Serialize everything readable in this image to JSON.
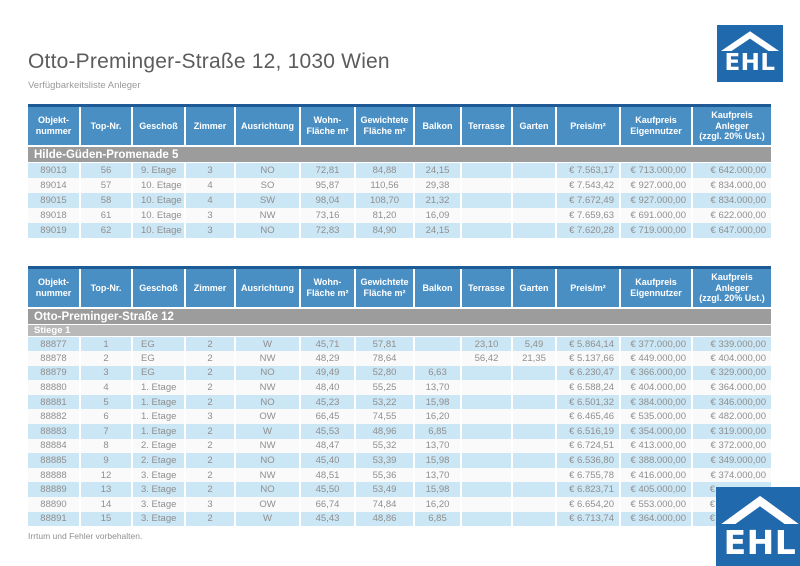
{
  "page": {
    "title": "Otto-Preminger-Straße 12, 1030 Wien",
    "subtitle": "Verfügbarkeitsliste Anleger",
    "footer": "Irrtum und Fehler vorbehalten."
  },
  "logo": {
    "text": "EHL"
  },
  "colors": {
    "header_blue": "#4a8fc4",
    "table_top_border": "#1d5a96",
    "logo_blue": "#2069ad",
    "section_gray": "#9c9c9c",
    "subsection_gray": "#b9b9b9",
    "row_stripe_blue": "#cbe6f4",
    "row_stripe_white": "#fafafa",
    "text_gray": "#8f8f8f"
  },
  "columns": [
    "Objekt-\nnummer",
    "Top-Nr.",
    "Geschoß",
    "Zimmer",
    "Ausrichtung",
    "Wohn-\nFläche m²",
    "Gewichtete\nFläche m²",
    "Balkon",
    "Terrasse",
    "Garten",
    "Preis/m²",
    "Kaufpreis\nEigennutzer",
    "Kaufpreis\nAnleger\n(zzgl. 20% Ust.)"
  ],
  "tables": [
    {
      "section": "Hilde-Güden-Promenade 5",
      "subsection": null,
      "rows": [
        [
          "89013",
          "56",
          "9. Etage",
          "3",
          "NO",
          "72,81",
          "84,88",
          "24,15",
          "",
          "",
          "€ 7.563,17",
          "€ 713.000,00",
          "€ 642.000,00"
        ],
        [
          "89014",
          "57",
          "10. Etage",
          "4",
          "SO",
          "95,87",
          "110,56",
          "29,38",
          "",
          "",
          "€ 7.543,42",
          "€ 927.000,00",
          "€ 834.000,00"
        ],
        [
          "89015",
          "58",
          "10. Etage",
          "4",
          "SW",
          "98,04",
          "108,70",
          "21,32",
          "",
          "",
          "€ 7.672,49",
          "€ 927.000,00",
          "€ 834.000,00"
        ],
        [
          "89018",
          "61",
          "10. Etage",
          "3",
          "NW",
          "73,16",
          "81,20",
          "16,09",
          "",
          "",
          "€ 7.659,63",
          "€ 691.000,00",
          "€ 622.000,00"
        ],
        [
          "89019",
          "62",
          "10. Etage",
          "3",
          "NO",
          "72,83",
          "84,90",
          "24,15",
          "",
          "",
          "€ 7.620,28",
          "€ 719.000,00",
          "€ 647.000,00"
        ]
      ]
    },
    {
      "section": "Otto-Preminger-Straße 12",
      "subsection": "Stiege 1",
      "rows": [
        [
          "88877",
          "1",
          "EG",
          "2",
          "W",
          "45,71",
          "57,81",
          "",
          "23,10",
          "5,49",
          "€ 5.864,14",
          "€ 377.000,00",
          "€ 339.000,00"
        ],
        [
          "88878",
          "2",
          "EG",
          "2",
          "NW",
          "48,29",
          "78,64",
          "",
          "56,42",
          "21,35",
          "€ 5.137,66",
          "€ 449.000,00",
          "€ 404.000,00"
        ],
        [
          "88879",
          "3",
          "EG",
          "2",
          "NO",
          "49,49",
          "52,80",
          "6,63",
          "",
          "",
          "€ 6.230,47",
          "€ 366.000,00",
          "€ 329.000,00"
        ],
        [
          "88880",
          "4",
          "1. Etage",
          "2",
          "NW",
          "48,40",
          "55,25",
          "13,70",
          "",
          "",
          "€ 6.588,24",
          "€ 404.000,00",
          "€ 364.000,00"
        ],
        [
          "88881",
          "5",
          "1. Etage",
          "2",
          "NO",
          "45,23",
          "53,22",
          "15,98",
          "",
          "",
          "€ 6.501,32",
          "€ 384.000,00",
          "€ 346.000,00"
        ],
        [
          "88882",
          "6",
          "1. Etage",
          "3",
          "OW",
          "66,45",
          "74,55",
          "16,20",
          "",
          "",
          "€ 6.465,46",
          "€ 535.000,00",
          "€ 482.000,00"
        ],
        [
          "88883",
          "7",
          "1. Etage",
          "2",
          "W",
          "45,53",
          "48,96",
          "6,85",
          "",
          "",
          "€ 6.516,19",
          "€ 354.000,00",
          "€ 319.000,00"
        ],
        [
          "88884",
          "8",
          "2. Etage",
          "2",
          "NW",
          "48,47",
          "55,32",
          "13,70",
          "",
          "",
          "€ 6.724,51",
          "€ 413.000,00",
          "€ 372.000,00"
        ],
        [
          "88885",
          "9",
          "2. Etage",
          "2",
          "NO",
          "45,40",
          "53,39",
          "15,98",
          "",
          "",
          "€ 6.536,80",
          "€ 388.000,00",
          "€ 349.000,00"
        ],
        [
          "88888",
          "12",
          "3. Etage",
          "2",
          "NW",
          "48,51",
          "55,36",
          "13,70",
          "",
          "",
          "€ 6.755,78",
          "€ 416.000,00",
          "€ 374.000,00"
        ],
        [
          "88889",
          "13",
          "3. Etage",
          "2",
          "NO",
          "45,50",
          "53,49",
          "15,98",
          "",
          "",
          "€ 6.823,71",
          "€ 405.000,00",
          "€"
        ],
        [
          "88890",
          "14",
          "3. Etage",
          "3",
          "OW",
          "66,74",
          "74,84",
          "16,20",
          "",
          "",
          "€ 6.654,20",
          "€ 553.000,00",
          "€"
        ],
        [
          "88891",
          "15",
          "3. Etage",
          "2",
          "W",
          "45,43",
          "48,86",
          "6,85",
          "",
          "",
          "€ 6.713,74",
          "€ 364.000,00",
          "€"
        ]
      ]
    }
  ]
}
